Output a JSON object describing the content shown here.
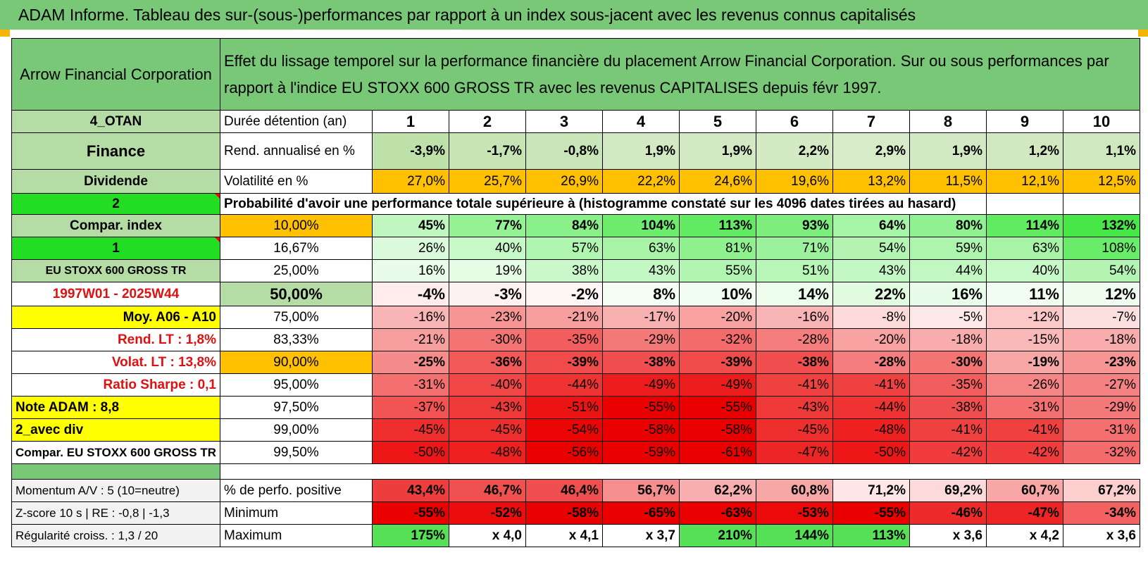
{
  "title": "ADAM Informe. Tableau des sur-(sous-)performances par rapport à un index sous-jacent avec les revenus connus capitalisés",
  "header": {
    "company": "Arrow Financial Corporation",
    "description": "Effet du lissage temporel sur la performance financière du placement Arrow Financial Corporation. Sur ou sous performances par rapport à l'indice EU STOXX 600 GROSS TR avec les revenus CAPITALISES depuis févr 1997."
  },
  "colors": {
    "header_green": "#78c878",
    "light_green": "#b5dca5",
    "bright_green": "#22dd22",
    "orange": "#ffc000",
    "yellow": "#ffff00",
    "red_text": "#e01010"
  },
  "side_labels": [
    "4_OTAN",
    "Finance",
    "Dividende",
    "2",
    "Compar. index",
    "1",
    "EU STOXX 600 GROSS TR",
    "1997W01 - 2025W44",
    "Moy. A06 - A10",
    "Rend. LT :   1,8%",
    "Volat. LT :   13,8%",
    "Ratio Sharpe :   0,1",
    "Note ADAM : 8,8",
    "2_avec div",
    "Compar. EU STOXX 600 GROSS TR"
  ],
  "years": [
    "1",
    "2",
    "3",
    "4",
    "5",
    "6",
    "7",
    "8",
    "9",
    "10"
  ],
  "rows_top": [
    {
      "label": "Durée détention (an)"
    },
    {
      "label": "Rend. annualisé en %",
      "values": [
        "-3,9%",
        "-1,7%",
        "-0,8%",
        "1,9%",
        "1,9%",
        "2,2%",
        "2,9%",
        "1,9%",
        "1,2%",
        "1,1%"
      ]
    },
    {
      "label": "Volatilité en %",
      "values": [
        "27,0%",
        "25,7%",
        "26,9%",
        "22,2%",
        "24,6%",
        "19,6%",
        "13,2%",
        "11,5%",
        "12,1%",
        "12,5%"
      ]
    }
  ],
  "probability_title": "Probabilité d'avoir une performance totale supérieure à (histogramme constaté sur les 4096 dates tirées au hasard)",
  "percentiles": [
    {
      "p": "10,00%",
      "values": [
        "45%",
        "77%",
        "84%",
        "104%",
        "113%",
        "93%",
        "64%",
        "80%",
        "114%",
        "132%"
      ]
    },
    {
      "p": "16,67%",
      "values": [
        "26%",
        "40%",
        "57%",
        "63%",
        "81%",
        "71%",
        "54%",
        "59%",
        "63%",
        "108%"
      ]
    },
    {
      "p": "25,00%",
      "values": [
        "16%",
        "19%",
        "38%",
        "43%",
        "55%",
        "51%",
        "43%",
        "44%",
        "40%",
        "54%"
      ]
    },
    {
      "p": "50,00%",
      "values": [
        "-4%",
        "-3%",
        "-2%",
        "8%",
        "10%",
        "14%",
        "22%",
        "16%",
        "11%",
        "12%"
      ]
    },
    {
      "p": "75,00%",
      "values": [
        "-16%",
        "-23%",
        "-21%",
        "-17%",
        "-20%",
        "-16%",
        "-8%",
        "-5%",
        "-12%",
        "-7%"
      ]
    },
    {
      "p": "83,33%",
      "values": [
        "-21%",
        "-30%",
        "-35%",
        "-29%",
        "-32%",
        "-28%",
        "-20%",
        "-18%",
        "-15%",
        "-18%"
      ]
    },
    {
      "p": "90,00%",
      "values": [
        "-25%",
        "-36%",
        "-39%",
        "-38%",
        "-39%",
        "-38%",
        "-28%",
        "-30%",
        "-19%",
        "-23%"
      ]
    },
    {
      "p": "95,00%",
      "values": [
        "-31%",
        "-40%",
        "-44%",
        "-49%",
        "-49%",
        "-41%",
        "-41%",
        "-35%",
        "-26%",
        "-27%"
      ]
    },
    {
      "p": "97,50%",
      "values": [
        "-37%",
        "-43%",
        "-51%",
        "-55%",
        "-55%",
        "-43%",
        "-44%",
        "-38%",
        "-31%",
        "-29%"
      ]
    },
    {
      "p": "99,00%",
      "values": [
        "-45%",
        "-45%",
        "-54%",
        "-58%",
        "-58%",
        "-45%",
        "-48%",
        "-41%",
        "-41%",
        "-31%"
      ]
    },
    {
      "p": "99,50%",
      "values": [
        "-50%",
        "-48%",
        "-56%",
        "-59%",
        "-61%",
        "-47%",
        "-50%",
        "-42%",
        "-42%",
        "-32%"
      ]
    }
  ],
  "bottom_rows": [
    {
      "side": "Momentum A/V : 5 (10=neutre)",
      "label": "% de perfo. positive",
      "values": [
        "43,4%",
        "46,7%",
        "46,4%",
        "56,7%",
        "62,2%",
        "60,8%",
        "71,2%",
        "69,2%",
        "60,7%",
        "67,2%"
      ]
    },
    {
      "side": "Z-score 10 s | RE : -0,8 | -1,3",
      "label": "Minimum",
      "values": [
        "-55%",
        "-52%",
        "-58%",
        "-65%",
        "-63%",
        "-53%",
        "-55%",
        "-46%",
        "-47%",
        "-34%"
      ]
    },
    {
      "side": "Régularité croiss. : 1,3 / 20",
      "label": "Maximum",
      "values": [
        "175%",
        "x 4,0",
        "x 4,1",
        "x 3,7",
        "210%",
        "144%",
        "113%",
        "x 3,6",
        "x 4,2",
        "x 3,6"
      ]
    }
  ]
}
